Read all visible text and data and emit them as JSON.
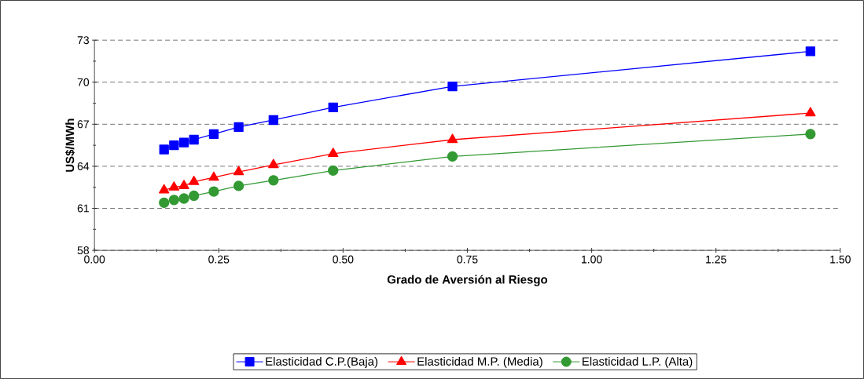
{
  "chart_data": {
    "type": "line",
    "xlabel": "Grado de Aversión al Riesgo",
    "ylabel": "US$/MWh",
    "xlim": [
      0,
      1.5
    ],
    "ylim": [
      58,
      73
    ],
    "xticks": [
      {
        "value": 0,
        "label": "0.00"
      },
      {
        "value": 0.25,
        "label": "0.25"
      },
      {
        "value": 0.5,
        "label": "0.50"
      },
      {
        "value": 0.75,
        "label": "0.75"
      },
      {
        "value": 1.0,
        "label": "1.00"
      },
      {
        "value": 1.25,
        "label": "1.25"
      },
      {
        "value": 1.5,
        "label": "1.50"
      }
    ],
    "yticks": [
      58,
      61,
      64,
      67,
      70,
      73
    ],
    "grid": "y",
    "legend": "bottom",
    "line_style": "solid",
    "x": [
      0.14,
      0.16,
      0.18,
      0.2,
      0.24,
      0.29,
      0.36,
      0.48,
      0.72,
      1.44
    ],
    "series": [
      {
        "name": "Elasticidad C.P.(Baja)",
        "color": "#0000ff",
        "marker": "square",
        "values": [
          65.2,
          65.5,
          65.7,
          65.9,
          66.3,
          66.8,
          67.3,
          68.2,
          69.7,
          72.2
        ]
      },
      {
        "name": "Elasticidad M.P. (Media)",
        "color": "#ff0000",
        "marker": "triangle",
        "values": [
          62.3,
          62.5,
          62.6,
          62.9,
          63.2,
          63.6,
          64.1,
          64.9,
          65.9,
          67.8
        ]
      },
      {
        "name": "Elasticidad L.P. (Alta)",
        "color": "#339933",
        "marker": "circle",
        "values": [
          61.4,
          61.6,
          61.7,
          61.9,
          62.2,
          62.6,
          63.0,
          63.7,
          64.7,
          66.3
        ]
      }
    ]
  }
}
